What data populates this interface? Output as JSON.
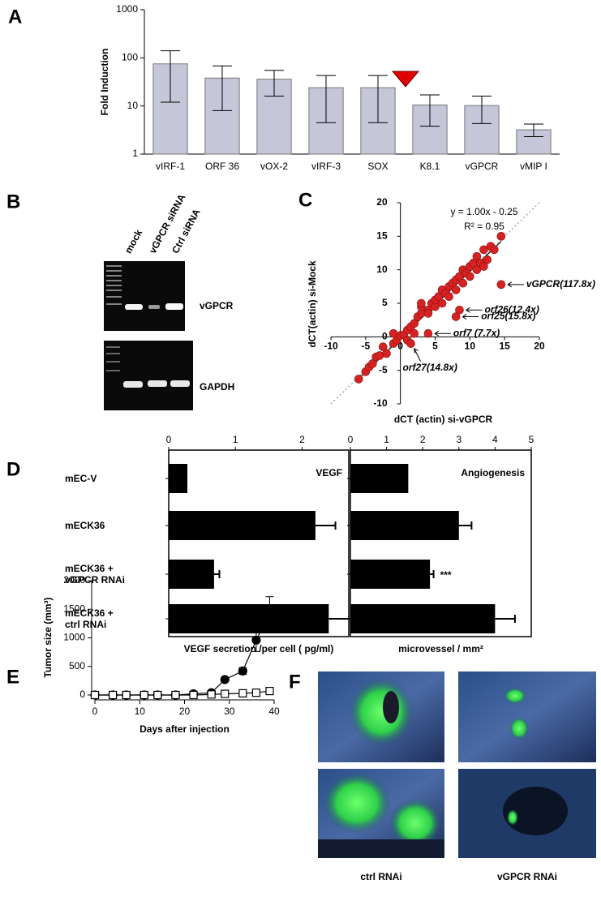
{
  "chart_data": [
    {
      "type": "bar",
      "label": "A",
      "ylabel": "Fold Induction",
      "categories": [
        "vIRF-1",
        "ORF 36",
        "vOX-2",
        "vIRF-3",
        "SOX",
        "K8.1",
        "vGPCR",
        "vMIP I"
      ],
      "values": [
        75,
        38,
        36,
        24,
        24,
        10.5,
        10.2,
        3.2
      ],
      "error_bars": [
        [
          12,
          140
        ],
        [
          8,
          68
        ],
        [
          16,
          55
        ],
        [
          4.5,
          43
        ],
        [
          4.5,
          43
        ],
        [
          3.8,
          17
        ],
        [
          4.3,
          16
        ],
        [
          2.3,
          4.2
        ]
      ],
      "color": "#c6c6d9",
      "log_scale": true,
      "ylim": [
        1,
        1000
      ],
      "yticks": [
        1,
        10,
        100,
        1000
      ]
    },
    {
      "type": "scatter",
      "label": "C",
      "equation": "y = 1.00x - 0.25",
      "r_squared": "R² = 0.95",
      "xlabel": "dCT (actin) si-vGPCR",
      "ylabel": "dCT(actin) si-Mock",
      "x": [
        -6,
        -5,
        -4.5,
        -4,
        -3.5,
        -3,
        -2,
        -2.5,
        -1,
        -0.5,
        0,
        -1,
        0.5,
        1,
        1.5,
        2,
        2.5,
        3,
        3,
        4,
        4.5,
        5,
        5,
        5.5,
        6,
        6,
        6.5,
        7,
        7,
        7.5,
        8,
        8,
        8.5,
        9,
        9,
        9.5,
        10,
        10,
        10.5,
        11,
        11,
        11.5,
        12,
        12,
        12.5,
        13,
        13.5,
        14.5,
        3,
        4,
        2,
        1,
        14.5,
        8.5,
        8,
        4,
        1.5
      ],
      "y": [
        -6.3,
        -5.2,
        -4.5,
        -4,
        -3,
        -2.8,
        -2.5,
        -1.5,
        -1,
        -0.5,
        0.2,
        0.5,
        0.3,
        1,
        1.5,
        2,
        3,
        3.5,
        4.5,
        4,
        5,
        4.5,
        5.5,
        6,
        5,
        7,
        6.5,
        6,
        7.5,
        8,
        7,
        8.5,
        9,
        8,
        10,
        9.5,
        9,
        10.5,
        11,
        10,
        12,
        11,
        10.5,
        13,
        11.5,
        13.5,
        13,
        15,
        5,
        3.5,
        0.5,
        -0.5,
        7.8,
        4,
        3,
        0.5,
        -1
      ],
      "color": "#d62222",
      "xlim": [
        -10,
        20
      ],
      "ylim": [
        -10,
        20
      ],
      "xticks": [
        -10,
        -5,
        0,
        5,
        10,
        15,
        20
      ],
      "yticks": [
        -10,
        -5,
        0,
        5,
        10,
        15,
        20
      ],
      "fit": {
        "slope": 1.0,
        "intercept": -0.25
      },
      "annotations": [
        {
          "text": "vGPCR(117.8x)",
          "x": 14.5,
          "y": 7.8
        },
        {
          "text": "orf26(12.4x)",
          "x": 8.5,
          "y": 4
        },
        {
          "text": "orf25(15.8x)",
          "x": 8,
          "y": 3
        },
        {
          "text": "orf7 (7.7x)",
          "x": 4,
          "y": 0.5
        },
        {
          "text": "orf27(14.8x)",
          "x": 1.5,
          "y": -1
        }
      ]
    },
    {
      "type": "hbar",
      "label": "D",
      "title": "VEGF",
      "xlabel": "VEGF secretion /per cell ( pg/ml)",
      "categories": [
        "mEC-V",
        "mECK36",
        "mECK36 +\nvGPCR  RNAi",
        "mECK36 +\nctrl RNAi"
      ],
      "values": [
        0.28,
        2.2,
        0.68,
        2.4
      ],
      "errors": [
        0,
        0.3,
        0.08,
        0.35
      ],
      "color": "#000000",
      "xlim": [
        0,
        2.7
      ],
      "xticks": [
        0,
        1,
        2
      ]
    },
    {
      "type": "hbar",
      "title": "Angiogenesis",
      "xlabel": "microvessel / mm²",
      "values": [
        1.6,
        3.0,
        2.2,
        4.0
      ],
      "errors": [
        0,
        0.35,
        0.1,
        0.55
      ],
      "annotation": "***",
      "color": "#000000",
      "xlim": [
        0,
        5
      ],
      "xticks": [
        0,
        1,
        2,
        3,
        4,
        5
      ]
    },
    {
      "type": "line",
      "label": "E",
      "ylabel": "Tumor size (mm³)",
      "xlabel": "Days after injection",
      "x": [
        0,
        4,
        7,
        11,
        14,
        18,
        22,
        26,
        29,
        33,
        36,
        39
      ],
      "series": [
        {
          "color": "#000000",
          "marker": "circle",
          "marker_fill": "#000000",
          "values": [
            0,
            0,
            0,
            0,
            0,
            0,
            20,
            40,
            270,
            420,
            960,
            1430
          ],
          "errors": [
            0,
            0,
            0,
            0,
            0,
            0,
            0,
            0,
            0,
            60,
            200,
            290
          ]
        },
        {
          "color": "#000000",
          "marker": "square",
          "marker_fill": "#ffffff",
          "values": [
            0,
            0,
            0,
            0,
            0,
            0,
            0,
            10,
            20,
            30,
            40,
            70
          ]
        }
      ],
      "xlim": [
        0,
        40
      ],
      "ylim": [
        0,
        2000
      ],
      "xticks": [
        0,
        10,
        20,
        30,
        40
      ],
      "yticks": [
        0,
        500,
        1000,
        1500,
        2000
      ]
    }
  ],
  "gel": {
    "label": "B",
    "lanes": [
      "mock",
      "vGPCR siRNA",
      "Ctrl siRNA"
    ],
    "genes": [
      "vGPCR",
      "GAPDH"
    ]
  },
  "photos": {
    "label": "F",
    "columns": [
      "ctrl RNAi",
      "vGPCR RNAi"
    ]
  }
}
